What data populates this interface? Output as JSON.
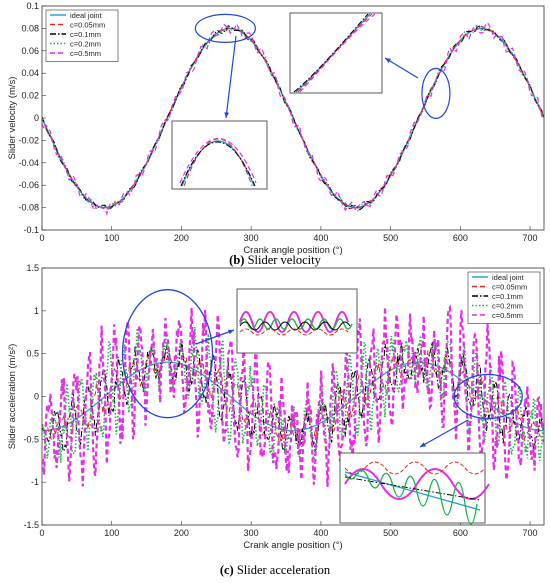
{
  "chart_data": [
    {
      "id": "velocity",
      "type": "line",
      "caption_prefix": "(b)",
      "caption_text": "Slider velocity",
      "xlabel": "Crank angle position (°)",
      "ylabel": "Slider velocity (m/s)",
      "xlim": [
        0,
        720
      ],
      "ylim": [
        -0.1,
        0.1
      ],
      "xticks": [
        0,
        100,
        200,
        300,
        400,
        500,
        600,
        700
      ],
      "yticks": [
        -0.1,
        -0.08,
        -0.06,
        -0.04,
        -0.02,
        0,
        0.02,
        0.04,
        0.06,
        0.08,
        0.1
      ],
      "ytick_labels": [
        "-0.1",
        "-0.08",
        "-0.06",
        "-0.04",
        "-0.02",
        "0",
        "0.02",
        "0.04",
        "0.06",
        "0.08",
        "0.1"
      ],
      "legend_position": "top-left",
      "grid": false,
      "model": {
        "amplitude": 0.08,
        "period_deg": 360,
        "peak_deg": 270,
        "trough_deg": 90
      },
      "series": [
        {
          "name": "ideal joint",
          "color": "#1f9bd7",
          "dash": "solid",
          "noise": 0.0
        },
        {
          "name": "c=0.05mm",
          "color": "#e8262a",
          "dash": "dashed",
          "noise": 0.0012
        },
        {
          "name": "c=0.1mm",
          "color": "#000000",
          "dash": "dashdot",
          "noise": 0.0018
        },
        {
          "name": "c=0.2mm",
          "color": "#21b24b",
          "dash": "dotted",
          "noise": 0.0025
        },
        {
          "name": "c=0.5mm",
          "color": "#e62ee6",
          "dash": "dashed",
          "noise": 0.004
        }
      ],
      "sample_points": {
        "x": [
          0,
          90,
          180,
          270,
          360,
          450,
          540,
          630,
          720
        ],
        "y": [
          0.0,
          -0.08,
          0.0,
          0.08,
          0.0,
          -0.08,
          0.0,
          0.08,
          0.0
        ]
      },
      "annotations": [
        {
          "kind": "ellipse-zoom",
          "target_x": 262,
          "target_y": 0.079
        },
        {
          "kind": "ellipse-zoom",
          "target_x": 570,
          "target_y": 0.02
        }
      ]
    },
    {
      "id": "acceleration",
      "type": "line",
      "caption_prefix": "(c)",
      "caption_text": "Slider acceleration",
      "xlabel": "Crank angle position (°)",
      "ylabel": "Slider acceleration (m/s²)",
      "xlim": [
        0,
        720
      ],
      "ylim": [
        -1.5,
        1.5
      ],
      "xticks": [
        0,
        100,
        200,
        300,
        400,
        500,
        600,
        700
      ],
      "yticks": [
        -1.5,
        -1,
        -0.5,
        0,
        0.5,
        1,
        1.5
      ],
      "ytick_labels": [
        "-1.5",
        "-1",
        "-0.5",
        "0",
        "0.5",
        "1",
        "1.5"
      ],
      "legend_position": "top-right",
      "grid": false,
      "model": {
        "amplitude": 0.4,
        "period_deg": 360,
        "peak_deg": 180,
        "trough_deg": 0
      },
      "series": [
        {
          "name": "ideal joint",
          "color": "#1f9bd7",
          "dash": "solid",
          "osc": 0.0
        },
        {
          "name": "c=0.05mm",
          "color": "#e8262a",
          "dash": "dashed",
          "osc": 0.18
        },
        {
          "name": "c=0.1mm",
          "color": "#000000",
          "dash": "dashdot",
          "osc": 0.3
        },
        {
          "name": "c=0.2mm",
          "color": "#21b24b",
          "dash": "dotted",
          "osc": 0.45
        },
        {
          "name": "c=0.5mm",
          "color": "#e62ee6",
          "dash": "dashed",
          "osc": 0.7
        }
      ],
      "sample_points": {
        "x": [
          0,
          90,
          180,
          270,
          360,
          450,
          540,
          630,
          720
        ],
        "y": [
          -0.4,
          0.0,
          0.4,
          0.0,
          -0.4,
          0.0,
          0.4,
          0.0,
          -0.4
        ]
      },
      "annotations": [
        {
          "kind": "ellipse-zoom",
          "target_x": 180,
          "target_y": 0.5
        },
        {
          "kind": "ellipse-zoom",
          "target_x": 640,
          "target_y": 0.0
        }
      ]
    }
  ]
}
